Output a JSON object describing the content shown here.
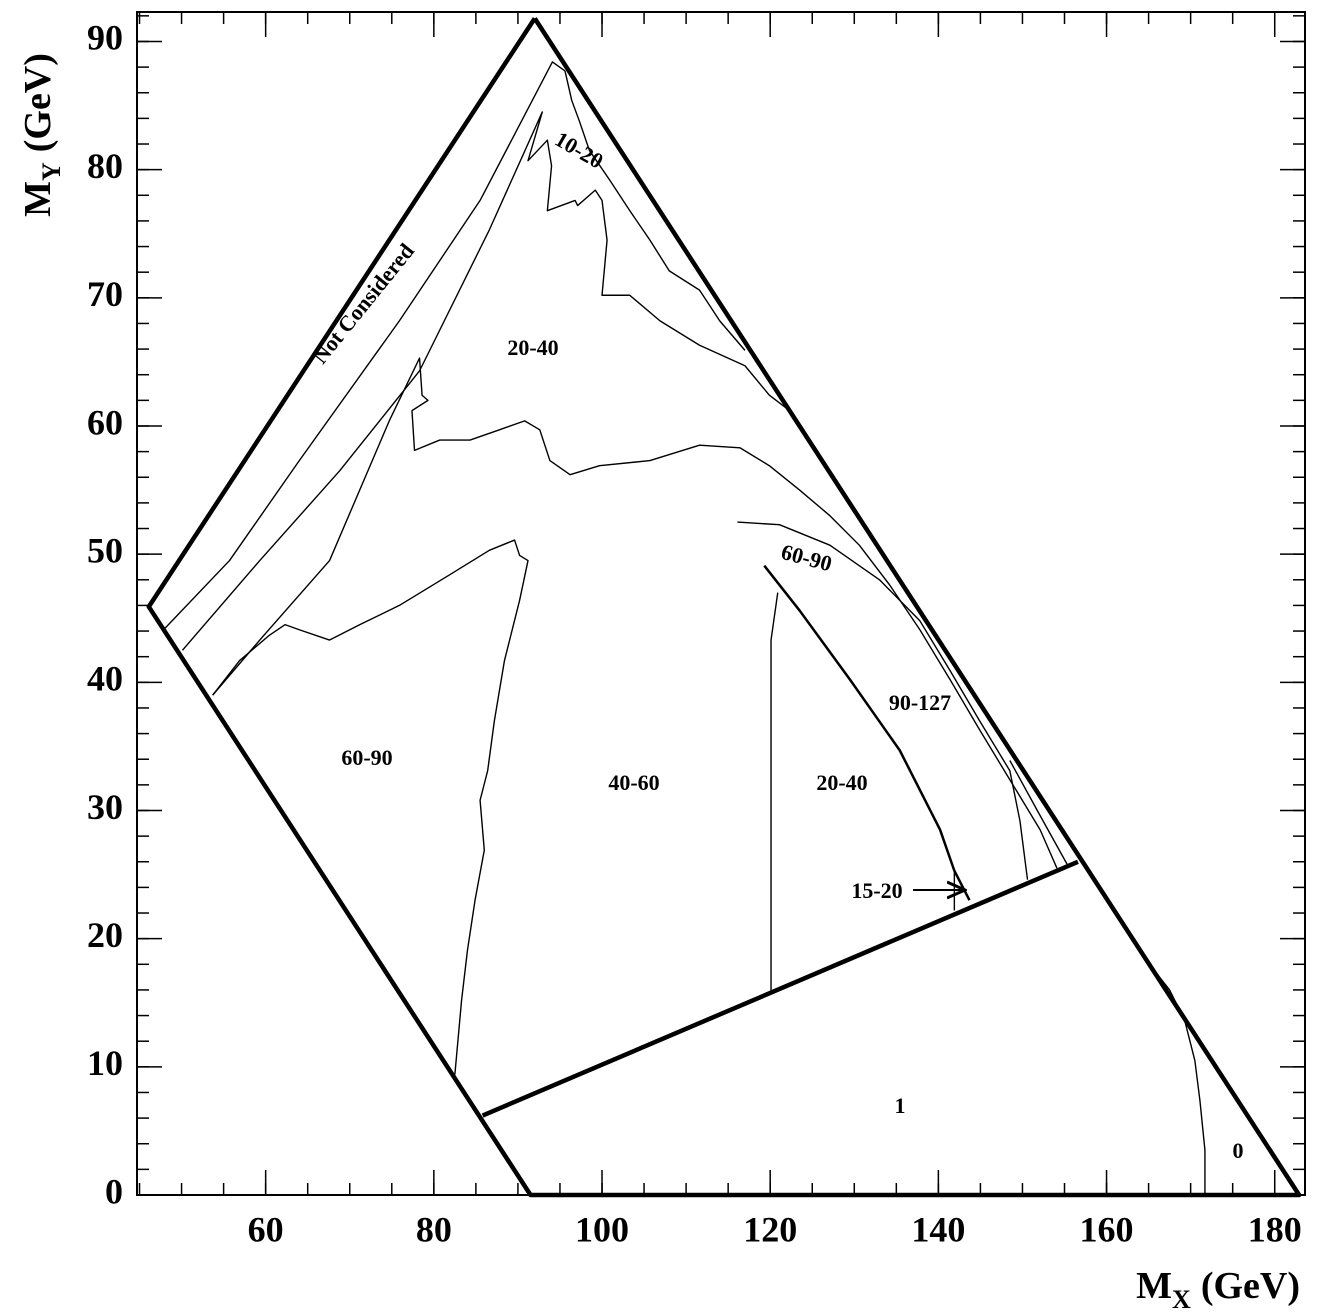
{
  "chart_data": {
    "type": "region",
    "xlabel": [
      "M",
      "X",
      "(GeV)"
    ],
    "ylabel": [
      "M",
      "Y",
      "(GeV)"
    ],
    "xlim": [
      44.7,
      183.6
    ],
    "ylim": [
      0,
      92.3
    ],
    "xticks": [
      60,
      80,
      100,
      120,
      140,
      160,
      180
    ],
    "yticks": [
      0,
      10,
      20,
      30,
      40,
      50,
      60,
      70,
      80,
      90
    ],
    "xminorticks": [
      45,
      50,
      55,
      60,
      65,
      70,
      75,
      80,
      85,
      90,
      95,
      100,
      105,
      110,
      115,
      120,
      125,
      130,
      135,
      140,
      145,
      150,
      155,
      160,
      165,
      170,
      175,
      180
    ],
    "yminorticks": [
      0,
      2,
      4,
      6,
      8,
      10,
      12,
      14,
      16,
      18,
      20,
      22,
      24,
      26,
      28,
      30,
      32,
      34,
      36,
      38,
      40,
      42,
      44,
      46,
      48,
      50,
      52,
      54,
      56,
      58,
      60,
      62,
      64,
      66,
      68,
      70,
      72,
      74,
      76,
      78,
      80,
      82,
      84,
      86,
      88,
      90,
      92
    ],
    "color": "#000000",
    "lines": [
      {
        "weight": "bold",
        "x": [
          92.0,
          46.1,
          91.5,
          182.9,
          92.0
        ],
        "y": [
          91.8,
          45.9,
          0,
          0,
          91.8
        ]
      },
      {
        "weight": "bold",
        "x": [
          85.8,
          156.6
        ],
        "y": [
          6.2,
          26.0
        ]
      },
      {
        "weight": "thin",
        "x": [
          48.0,
          55.7,
          64.0,
          75.9,
          85.5,
          94.1,
          95.6
        ],
        "y": [
          44.2,
          49.5,
          57.3,
          68.2,
          77.6,
          88.4,
          87.7
        ]
      },
      {
        "weight": "thin",
        "x": [
          50.1,
          59.3,
          68.8,
          78.3,
          86.6,
          92.9,
          91.2,
          93.5,
          94.0,
          93.5,
          96.8,
          97.1,
          99.2,
          100.0,
          100.6,
          100.0,
          103.3,
          106.9,
          111.6,
          117.0,
          119.9,
          122.3
        ],
        "y": [
          42.5,
          49.5,
          56.5,
          64.3,
          75.3,
          84.5,
          80.7,
          82.3,
          80.3,
          76.8,
          77.6,
          77.2,
          78.4,
          77.6,
          74.5,
          70.2,
          70.2,
          68.2,
          66.3,
          64.7,
          62.4,
          61.2
        ]
      },
      {
        "weight": "thin",
        "x": [
          95.6,
          96.4,
          97.3,
          98.5,
          100.9,
          103.3,
          105.7,
          108.0,
          111.6,
          114.0,
          117.0
        ],
        "y": [
          87.7,
          85.4,
          83.8,
          81.5,
          79.2,
          76.8,
          74.5,
          72.1,
          70.6,
          68.2,
          65.9
        ]
      },
      {
        "weight": "thin",
        "x": [
          53.7,
          59.3,
          67.6,
          74.7,
          78.3,
          78.6,
          79.3,
          77.4,
          77.7,
          80.7,
          84.3,
          87.8,
          90.8,
          92.6,
          93.8,
          96.2,
          99.7,
          105.7,
          111.6,
          116.4,
          119.9,
          123.5,
          127.1,
          130.6,
          134.2,
          137.8,
          141.4,
          144.9,
          148.5,
          152.1,
          154.1
        ],
        "y": [
          39.0,
          43.3,
          49.5,
          60.4,
          65.3,
          62.4,
          62.0,
          61.2,
          58.1,
          58.9,
          58.9,
          59.7,
          60.4,
          59.7,
          57.3,
          56.2,
          56.9,
          57.3,
          58.5,
          58.3,
          56.9,
          55.0,
          53.0,
          50.7,
          47.6,
          44.1,
          40.2,
          36.3,
          32.4,
          28.5,
          25.5
        ]
      },
      {
        "weight": "thin",
        "x": [
          116.1,
          121.1,
          127.1,
          133.0,
          137.8,
          141.4,
          144.9,
          148.5,
          149.7,
          150.6
        ],
        "y": [
          52.5,
          52.3,
          50.7,
          48.0,
          44.8,
          40.9,
          37.0,
          33.1,
          29.2,
          24.6
        ]
      },
      {
        "weight": "thin",
        "x": [
          148.5,
          152.1,
          155.4
        ],
        "y": [
          33.9,
          29.6,
          25.7
        ]
      },
      {
        "weight": "medium",
        "x": [
          119.3,
          123.5,
          129.5,
          135.4,
          140.2,
          141.9,
          143.7
        ],
        "y": [
          49.1,
          45.6,
          40.2,
          34.7,
          28.5,
          25.3,
          23.0
        ]
      },
      {
        "weight": "thin",
        "x": [
          120.9,
          120.1,
          120.1
        ],
        "y": [
          47.0,
          43.3,
          15.8
        ]
      },
      {
        "weight": "thin",
        "x": [
          141.9,
          141.9
        ],
        "y": [
          25.3,
          22.2
        ]
      },
      {
        "weight": "thin",
        "x": [
          53.7,
          56.9,
          60.5,
          62.3,
          64.0,
          67.6,
          71.2,
          75.9,
          81.9,
          86.6,
          89.6,
          90.2,
          91.2,
          90.2,
          88.4,
          87.2,
          86.4,
          85.5,
          86.0,
          84.9,
          84.0,
          83.3,
          82.5
        ],
        "y": [
          39.0,
          41.7,
          43.7,
          44.5,
          44.1,
          43.3,
          44.5,
          46.0,
          48.4,
          50.3,
          51.1,
          49.9,
          49.5,
          46.4,
          41.7,
          37.0,
          33.1,
          30.8,
          26.9,
          23.0,
          19.1,
          15.2,
          9.4
        ]
      },
      {
        "weight": "thin",
        "x": [
          165.7,
          167.5,
          169.3,
          170.5,
          171.1,
          171.7,
          171.7
        ],
        "y": [
          17.5,
          16.0,
          13.6,
          10.5,
          7.4,
          3.5,
          0
        ]
      }
    ],
    "region_labels": [
      "Not Considered",
      "10-20",
      "20-40",
      "60-90",
      "40-60",
      "20-40",
      "90-127",
      "60-90",
      "15-20",
      "1",
      "0"
    ]
  }
}
